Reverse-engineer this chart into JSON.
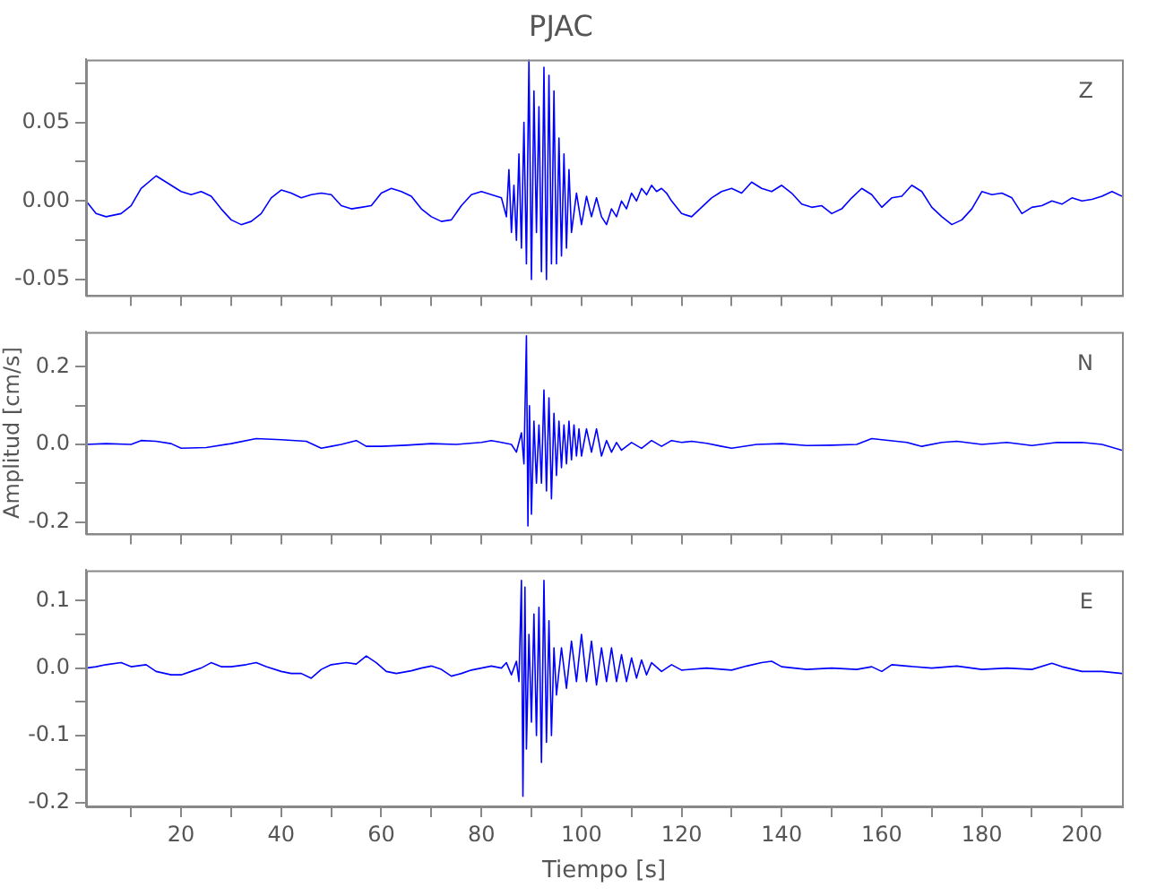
{
  "chart_data": [
    {
      "type": "line",
      "title": "PJAC",
      "annotations": [
        "Z"
      ],
      "xlim": [
        1,
        208
      ],
      "xticks": [
        {
          "value": 10,
          "label": null
        },
        {
          "value": 20,
          "label": null
        },
        {
          "value": 30,
          "label": null
        },
        {
          "value": 40,
          "label": null
        },
        {
          "value": 50,
          "label": null
        },
        {
          "value": 60,
          "label": null
        },
        {
          "value": 70,
          "label": null
        },
        {
          "value": 80,
          "label": null
        },
        {
          "value": 90,
          "label": null
        },
        {
          "value": 100,
          "label": null
        },
        {
          "value": 110,
          "label": null
        },
        {
          "value": 120,
          "label": null
        },
        {
          "value": 130,
          "label": null
        },
        {
          "value": 140,
          "label": null
        },
        {
          "value": 150,
          "label": null
        },
        {
          "value": 160,
          "label": null
        },
        {
          "value": 170,
          "label": null
        },
        {
          "value": 180,
          "label": null
        },
        {
          "value": 190,
          "label": null
        },
        {
          "value": 200,
          "label": null
        }
      ],
      "ylim": [
        -0.06,
        0.09
      ],
      "yticks": [
        {
          "value": -0.05,
          "label": "-0.05"
        },
        {
          "value": -0.025,
          "label": null
        },
        {
          "value": 0,
          "label": "0.00"
        },
        {
          "value": 0.025,
          "label": null
        },
        {
          "value": 0.05,
          "label": "0.05"
        },
        {
          "value": 0.075,
          "label": null
        }
      ],
      "tick_labels": "y",
      "grid": false,
      "legend": false,
      "series": [
        {
          "color": "#0000ff",
          "x": [
            1,
            3,
            5,
            8,
            10,
            12,
            15,
            17,
            20,
            22,
            24,
            26,
            28,
            30,
            32,
            34,
            36,
            38,
            40,
            42,
            44,
            46,
            48,
            50,
            52,
            54,
            56,
            58,
            60,
            62,
            64,
            66,
            68,
            70,
            72,
            74,
            76,
            78,
            80,
            82,
            84,
            85,
            85.5,
            86,
            86.5,
            87,
            87.5,
            88,
            88.5,
            89,
            89.5,
            90,
            90.5,
            91,
            91.5,
            92,
            92.5,
            93,
            93.5,
            94,
            94.5,
            95,
            95.5,
            96,
            96.5,
            97,
            97.5,
            98,
            99,
            100,
            101,
            102,
            103,
            104,
            105,
            106,
            107,
            108,
            109,
            110,
            111,
            112,
            113,
            114,
            115,
            116,
            117,
            118,
            120,
            122,
            124,
            126,
            128,
            130,
            132,
            134,
            136,
            138,
            140,
            142,
            144,
            146,
            148,
            150,
            152,
            154,
            156,
            158,
            160,
            162,
            164,
            166,
            168,
            170,
            172,
            174,
            176,
            178,
            180,
            182,
            184,
            186,
            188,
            190,
            192,
            194,
            196,
            198,
            200,
            202,
            204,
            206,
            208
          ],
          "values": [
            0.0,
            -0.008,
            -0.01,
            -0.008,
            -0.003,
            0.008,
            0.016,
            0.012,
            0.006,
            0.004,
            0.006,
            0.003,
            -0.005,
            -0.012,
            -0.015,
            -0.013,
            -0.008,
            0.002,
            0.007,
            0.005,
            0.002,
            0.004,
            0.005,
            0.004,
            -0.003,
            -0.005,
            -0.004,
            -0.003,
            0.005,
            0.008,
            0.006,
            0.003,
            -0.005,
            -0.01,
            -0.013,
            -0.012,
            -0.003,
            0.004,
            0.006,
            0.004,
            0.002,
            -0.01,
            0.02,
            -0.02,
            0.01,
            -0.025,
            0.03,
            -0.03,
            0.05,
            -0.04,
            0.09,
            -0.05,
            0.07,
            -0.02,
            0.06,
            -0.045,
            0.085,
            -0.05,
            0.08,
            -0.04,
            0.07,
            -0.04,
            0.04,
            -0.035,
            0.03,
            -0.03,
            0.02,
            -0.02,
            0.005,
            -0.015,
            0.003,
            -0.01,
            0.002,
            -0.01,
            -0.015,
            -0.005,
            -0.01,
            0.0,
            -0.005,
            0.005,
            0.0,
            0.008,
            0.004,
            0.01,
            0.006,
            0.008,
            0.005,
            0.0,
            -0.008,
            -0.01,
            -0.004,
            0.002,
            0.006,
            0.008,
            0.005,
            0.012,
            0.008,
            0.006,
            0.01,
            0.005,
            -0.002,
            -0.004,
            -0.003,
            -0.008,
            -0.005,
            0.002,
            0.008,
            0.004,
            -0.004,
            0.002,
            0.003,
            0.01,
            0.006,
            -0.004,
            -0.01,
            -0.015,
            -0.012,
            -0.005,
            0.006,
            0.004,
            0.005,
            0.002,
            -0.008,
            -0.004,
            -0.003,
            0.0,
            -0.002,
            0.002,
            0.0,
            0.001,
            0.003,
            0.006,
            0.003
          ]
        }
      ]
    },
    {
      "type": "line",
      "ylabel": "Amplitud [cm/s]",
      "annotations": [
        "N"
      ],
      "xlim": [
        1,
        208
      ],
      "xticks": [
        {
          "value": 10,
          "label": null
        },
        {
          "value": 20,
          "label": null
        },
        {
          "value": 30,
          "label": null
        },
        {
          "value": 40,
          "label": null
        },
        {
          "value": 50,
          "label": null
        },
        {
          "value": 60,
          "label": null
        },
        {
          "value": 70,
          "label": null
        },
        {
          "value": 80,
          "label": null
        },
        {
          "value": 90,
          "label": null
        },
        {
          "value": 100,
          "label": null
        },
        {
          "value": 110,
          "label": null
        },
        {
          "value": 120,
          "label": null
        },
        {
          "value": 130,
          "label": null
        },
        {
          "value": 140,
          "label": null
        },
        {
          "value": 150,
          "label": null
        },
        {
          "value": 160,
          "label": null
        },
        {
          "value": 170,
          "label": null
        },
        {
          "value": 180,
          "label": null
        },
        {
          "value": 190,
          "label": null
        },
        {
          "value": 200,
          "label": null
        }
      ],
      "ylim": [
        -0.23,
        0.29
      ],
      "yticks": [
        {
          "value": -0.2,
          "label": "-0.2"
        },
        {
          "value": -0.1,
          "label": null
        },
        {
          "value": 0,
          "label": "0.0"
        },
        {
          "value": 0.1,
          "label": null
        },
        {
          "value": 0.2,
          "label": "0.2"
        }
      ],
      "tick_labels": "y",
      "grid": false,
      "legend": false,
      "series": [
        {
          "color": "#0000ff",
          "x": [
            1,
            5,
            10,
            12,
            15,
            18,
            20,
            25,
            30,
            35,
            40,
            45,
            48,
            50,
            52,
            55,
            57,
            60,
            65,
            70,
            75,
            80,
            82,
            84,
            86,
            87,
            88,
            88.5,
            89,
            89.3,
            89.6,
            90,
            90.5,
            91,
            91.5,
            92,
            92.5,
            93,
            93.5,
            94,
            94.5,
            95,
            95.5,
            96,
            96.5,
            97,
            97.5,
            98,
            98.5,
            99,
            99.5,
            100,
            101,
            102,
            103,
            104,
            105,
            106,
            107,
            108,
            110,
            112,
            114,
            116,
            118,
            120,
            122,
            125,
            128,
            130,
            135,
            140,
            145,
            150,
            155,
            158,
            160,
            165,
            168,
            172,
            175,
            180,
            185,
            190,
            195,
            200,
            204,
            208
          ],
          "values": [
            0.0,
            0.002,
            0.0,
            0.01,
            0.008,
            0.002,
            -0.01,
            -0.008,
            0.002,
            0.015,
            0.012,
            0.008,
            -0.01,
            -0.005,
            0.0,
            0.01,
            -0.005,
            -0.005,
            -0.002,
            0.002,
            0.0,
            0.005,
            0.01,
            0.005,
            0.0,
            -0.02,
            0.03,
            -0.05,
            0.28,
            -0.21,
            0.1,
            -0.18,
            0.06,
            -0.1,
            0.05,
            -0.1,
            0.14,
            -0.12,
            0.12,
            -0.14,
            0.08,
            -0.08,
            0.06,
            -0.06,
            0.05,
            -0.05,
            0.06,
            -0.04,
            0.05,
            -0.03,
            0.04,
            -0.03,
            0.04,
            -0.02,
            0.04,
            -0.03,
            0.01,
            -0.02,
            0.005,
            -0.015,
            0.005,
            -0.01,
            0.01,
            -0.005,
            0.01,
            0.005,
            0.008,
            0.003,
            -0.005,
            -0.01,
            0.0,
            0.002,
            -0.003,
            -0.002,
            0.0,
            0.015,
            0.012,
            0.005,
            -0.005,
            0.005,
            0.008,
            0.0,
            0.005,
            -0.003,
            0.005,
            0.005,
            0.0,
            -0.015
          ]
        }
      ]
    },
    {
      "type": "line",
      "xlabel": "Tiempo [s]",
      "annotations": [
        "E"
      ],
      "xlim": [
        1,
        208
      ],
      "xticks": [
        {
          "value": 10,
          "label": null
        },
        20,
        {
          "value": 30,
          "label": null
        },
        40,
        {
          "value": 50,
          "label": null
        },
        60,
        {
          "value": 70,
          "label": null
        },
        80,
        {
          "value": 90,
          "label": null
        },
        100,
        {
          "value": 110,
          "label": null
        },
        120,
        {
          "value": 130,
          "label": null
        },
        140,
        {
          "value": 150,
          "label": null
        },
        160,
        {
          "value": 170,
          "label": null
        },
        180,
        {
          "value": 190,
          "label": null
        },
        200
      ],
      "ylim": [
        -0.205,
        0.145
      ],
      "yticks": [
        {
          "value": -0.2,
          "label": "-0.2"
        },
        {
          "value": -0.15,
          "label": null
        },
        {
          "value": -0.1,
          "label": "-0.1"
        },
        {
          "value": -0.05,
          "label": null
        },
        {
          "value": 0,
          "label": "0.0"
        },
        {
          "value": 0.05,
          "label": null
        },
        {
          "value": 0.1,
          "label": "0.1"
        }
      ],
      "grid": false,
      "legend": false,
      "series": [
        {
          "color": "#0000ff",
          "x": [
            1,
            3,
            5,
            8,
            10,
            13,
            15,
            18,
            20,
            22,
            24,
            26,
            28,
            30,
            33,
            35,
            37,
            40,
            42,
            44,
            46,
            48,
            50,
            53,
            55,
            57,
            59,
            61,
            63,
            66,
            68,
            70,
            72,
            74,
            76,
            78,
            80,
            82,
            84,
            85,
            86,
            87,
            87.5,
            88,
            88.3,
            88.7,
            89,
            89.5,
            90,
            90.5,
            91,
            91.5,
            92,
            92.5,
            93,
            93.5,
            94,
            94.5,
            95,
            96,
            97,
            98,
            99,
            100,
            101,
            102,
            103,
            104,
            105,
            106,
            107,
            108,
            109,
            110,
            111,
            112,
            113,
            114,
            116,
            118,
            120,
            125,
            130,
            133,
            136,
            138,
            140,
            145,
            150,
            155,
            158,
            160,
            162,
            165,
            170,
            175,
            180,
            185,
            190,
            194,
            196,
            200,
            204,
            208
          ],
          "values": [
            0.0,
            0.002,
            0.005,
            0.008,
            0.002,
            0.005,
            -0.005,
            -0.01,
            -0.01,
            -0.005,
            0.0,
            0.008,
            0.002,
            0.002,
            0.005,
            0.008,
            0.002,
            -0.005,
            -0.008,
            -0.008,
            -0.015,
            -0.002,
            0.005,
            0.008,
            0.006,
            0.018,
            0.008,
            -0.005,
            -0.008,
            -0.004,
            0.0,
            0.003,
            -0.002,
            -0.012,
            -0.008,
            -0.003,
            0.0,
            0.003,
            0.0,
            0.008,
            -0.01,
            0.01,
            -0.02,
            0.13,
            -0.19,
            0.12,
            -0.12,
            0.05,
            -0.08,
            0.08,
            -0.1,
            0.09,
            -0.14,
            0.13,
            -0.11,
            0.07,
            -0.1,
            0.03,
            -0.04,
            0.03,
            -0.03,
            0.04,
            -0.02,
            0.05,
            -0.02,
            0.04,
            -0.025,
            0.03,
            -0.02,
            0.03,
            -0.02,
            0.02,
            -0.02,
            0.015,
            -0.015,
            0.012,
            -0.01,
            0.008,
            -0.005,
            0.005,
            -0.003,
            0.0,
            -0.003,
            0.003,
            0.008,
            0.01,
            0.002,
            -0.002,
            0.0,
            -0.002,
            0.002,
            -0.005,
            0.005,
            0.003,
            0.0,
            0.003,
            -0.002,
            0.0,
            -0.002,
            0.007,
            0.002,
            -0.005,
            -0.005,
            -0.008
          ]
        }
      ]
    }
  ]
}
